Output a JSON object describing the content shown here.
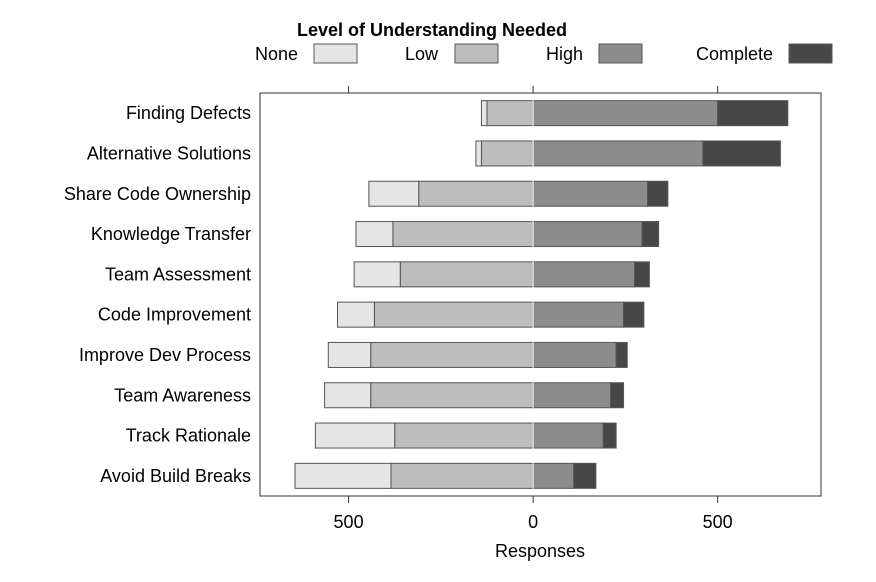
{
  "chart_data": {
    "type": "bar",
    "subtype": "diverging-stacked-horizontal",
    "legend": {
      "title": "Level of Understanding Needed",
      "entries": [
        "None",
        "Low",
        "High",
        "Complete"
      ],
      "placement": "top"
    },
    "categories": [
      "Finding Defects",
      "Alternative Solutions",
      "Share Code Ownership",
      "Knowledge Transfer",
      "Team Assessment",
      "Code Improvement",
      "Improve Dev Process",
      "Team Awareness",
      "Track Rationale",
      "Avoid Build Breaks"
    ],
    "series": [
      {
        "name": "None",
        "side": "left",
        "color": "#e5e5e5",
        "values": [
          15,
          15,
          135,
          100,
          125,
          100,
          115,
          125,
          215,
          260
        ]
      },
      {
        "name": "Low",
        "side": "left",
        "color": "#bdbdbd",
        "values": [
          125,
          140,
          310,
          380,
          360,
          430,
          440,
          440,
          375,
          385
        ]
      },
      {
        "name": "High",
        "side": "right",
        "color": "#8c8c8c",
        "values": [
          500,
          460,
          310,
          295,
          275,
          245,
          225,
          210,
          190,
          110
        ]
      },
      {
        "name": "Complete",
        "side": "right",
        "color": "#474747",
        "values": [
          190,
          210,
          55,
          45,
          40,
          55,
          30,
          35,
          35,
          60
        ]
      }
    ],
    "xlabel": "Responses",
    "ylabel": "",
    "xlim": [
      -740,
      780
    ],
    "xticks": [
      {
        "value": -500,
        "label": "500"
      },
      {
        "value": 0,
        "label": "0"
      },
      {
        "value": 500,
        "label": "500"
      }
    ],
    "grid": false,
    "styles": {
      "bar_stroke": "#555555",
      "frame_stroke": "#333333",
      "zero_line": "#ffffff"
    }
  }
}
